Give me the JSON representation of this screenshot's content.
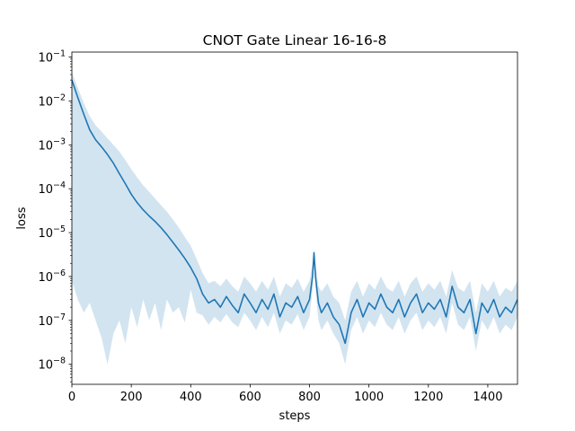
{
  "chart_data": {
    "type": "line",
    "title": "CNOT Gate Linear 16-16-8",
    "xlabel": "steps",
    "ylabel": "loss",
    "xlim": [
      0,
      1500
    ],
    "ylim": [
      3.5e-09,
      0.13
    ],
    "yscale": "log",
    "grid": false,
    "x_ticks": [
      {
        "value": 0,
        "label": "0"
      },
      {
        "value": 200,
        "label": "200"
      },
      {
        "value": 400,
        "label": "400"
      },
      {
        "value": 600,
        "label": "600"
      },
      {
        "value": 800,
        "label": "800"
      },
      {
        "value": 1000,
        "label": "1000"
      },
      {
        "value": 1200,
        "label": "1200"
      },
      {
        "value": 1400,
        "label": "1400"
      }
    ],
    "y_ticks": [
      {
        "value": 1e-08,
        "mant": "10",
        "exp": "−8"
      },
      {
        "value": 1e-07,
        "mant": "10",
        "exp": "−7"
      },
      {
        "value": 1e-06,
        "mant": "10",
        "exp": "−6"
      },
      {
        "value": 1e-05,
        "mant": "10",
        "exp": "−5"
      },
      {
        "value": 0.0001,
        "mant": "10",
        "exp": "−4"
      },
      {
        "value": 0.001,
        "mant": "10",
        "exp": "−3"
      },
      {
        "value": 0.01,
        "mant": "10",
        "exp": "−2"
      },
      {
        "value": 0.1,
        "mant": "10",
        "exp": "−1"
      }
    ],
    "series": [
      {
        "color": "#1f77b4",
        "band_color": "#1f77b4",
        "band_opacity": 0.2,
        "x": [
          0,
          20,
          40,
          60,
          80,
          100,
          120,
          140,
          160,
          180,
          200,
          220,
          240,
          260,
          280,
          300,
          320,
          340,
          360,
          380,
          400,
          420,
          440,
          460,
          480,
          500,
          520,
          540,
          560,
          580,
          600,
          620,
          640,
          660,
          680,
          700,
          720,
          740,
          760,
          780,
          800,
          810,
          815,
          820,
          830,
          840,
          860,
          880,
          900,
          920,
          940,
          960,
          980,
          1000,
          1020,
          1040,
          1060,
          1080,
          1100,
          1120,
          1140,
          1160,
          1180,
          1200,
          1220,
          1240,
          1260,
          1280,
          1300,
          1320,
          1340,
          1360,
          1380,
          1400,
          1420,
          1440,
          1460,
          1480,
          1500
        ],
        "mean": [
          0.03,
          0.012,
          0.005,
          0.0022,
          0.0013,
          0.0009,
          0.0006,
          0.00038,
          0.00022,
          0.00013,
          7.5e-05,
          4.8e-05,
          3.3e-05,
          2.4e-05,
          1.8e-05,
          1.3e-05,
          9e-06,
          6e-06,
          4e-06,
          2.6e-06,
          1.6e-06,
          9e-07,
          4e-07,
          2.5e-07,
          3e-07,
          2e-07,
          3.5e-07,
          2.2e-07,
          1.5e-07,
          4e-07,
          2.5e-07,
          1.5e-07,
          3e-07,
          1.8e-07,
          4e-07,
          1.2e-07,
          2.5e-07,
          2e-07,
          3.5e-07,
          1.5e-07,
          3e-07,
          1e-06,
          3.5e-06,
          1e-06,
          2.5e-07,
          1.5e-07,
          2.5e-07,
          1.2e-07,
          8e-08,
          3e-08,
          1.5e-07,
          3e-07,
          1.2e-07,
          2.5e-07,
          1.8e-07,
          4e-07,
          2e-07,
          1.5e-07,
          3e-07,
          1.2e-07,
          2.5e-07,
          4e-07,
          1.5e-07,
          2.5e-07,
          1.8e-07,
          3e-07,
          1.2e-07,
          6e-07,
          2e-07,
          1.5e-07,
          3e-07,
          5e-08,
          2.5e-07,
          1.5e-07,
          3e-07,
          1.2e-07,
          2e-07,
          1.5e-07,
          3e-07
        ],
        "upper": [
          0.045,
          0.02,
          0.009,
          0.0045,
          0.0028,
          0.002,
          0.0014,
          0.001,
          0.0007,
          0.00045,
          0.00028,
          0.00018,
          0.00012,
          8.5e-05,
          6e-05,
          4.2e-05,
          3e-05,
          2e-05,
          1.3e-05,
          8e-06,
          5e-06,
          2.5e-06,
          1.2e-06,
          7e-07,
          8e-07,
          6e-07,
          9e-07,
          6e-07,
          4.5e-07,
          1e-06,
          7e-07,
          4.5e-07,
          8e-07,
          5e-07,
          1e-06,
          3.5e-07,
          7e-07,
          5.5e-07,
          9e-07,
          4.5e-07,
          8e-07,
          2e-06,
          4e-06,
          2e-06,
          6e-07,
          4.5e-07,
          7e-07,
          3.5e-07,
          2.5e-07,
          1e-07,
          4.5e-07,
          8e-07,
          3.5e-07,
          7e-07,
          5e-07,
          1e-06,
          5.5e-07,
          4.5e-07,
          8e-07,
          3.5e-07,
          7e-07,
          1e-06,
          4.5e-07,
          7e-07,
          5e-07,
          8e-07,
          3.5e-07,
          1.4e-06,
          5.5e-07,
          4.5e-07,
          8e-07,
          1.5e-07,
          7e-07,
          4.5e-07,
          8e-07,
          3.5e-07,
          5.5e-07,
          4.5e-07,
          8e-07
        ],
        "lower": [
          8e-07,
          3e-07,
          1.5e-07,
          2.5e-07,
          1e-07,
          4e-08,
          1e-08,
          5e-08,
          1e-07,
          3e-08,
          2e-07,
          7e-08,
          3e-07,
          1e-07,
          2.5e-07,
          6e-08,
          3e-07,
          1.5e-07,
          2e-07,
          9e-08,
          5e-07,
          1.5e-07,
          1.3e-07,
          8e-08,
          1.2e-07,
          9e-08,
          1.4e-07,
          9e-08,
          7e-08,
          1.5e-07,
          1e-07,
          6e-08,
          1.2e-07,
          7e-08,
          1.5e-07,
          5e-08,
          1e-07,
          8e-08,
          1.4e-07,
          6e-08,
          1.2e-07,
          5e-07,
          3e-06,
          5e-07,
          1e-07,
          6e-08,
          1e-07,
          5e-08,
          3e-08,
          1e-08,
          6e-08,
          1.2e-07,
          5e-08,
          1e-07,
          7e-08,
          1.5e-07,
          8e-08,
          6e-08,
          1.2e-07,
          5e-08,
          1e-07,
          1.5e-07,
          6e-08,
          1e-07,
          7e-08,
          1.2e-07,
          5e-08,
          2.5e-07,
          8e-08,
          6e-08,
          1.2e-07,
          2e-08,
          1e-07,
          6e-08,
          1.2e-07,
          5e-08,
          8e-08,
          6e-08,
          1.2e-07
        ]
      }
    ]
  }
}
